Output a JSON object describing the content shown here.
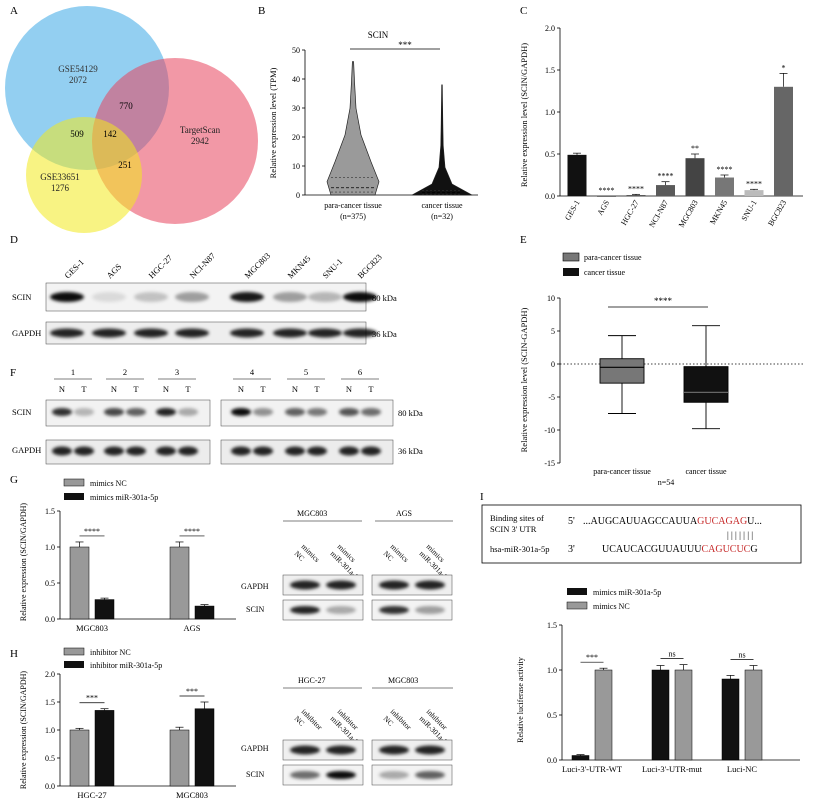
{
  "panels": {
    "A": {
      "letter": "A",
      "sets": [
        "GSE54129",
        "TargetScan",
        "GSE33651"
      ],
      "set_counts": [
        "2072",
        "2942",
        "1276"
      ],
      "overlaps": {
        "ab": "770",
        "ac": "509",
        "abc": "142",
        "bc": "251"
      },
      "colors": [
        "#3aa7e6",
        "#e8435d",
        "#f2ea1e"
      ]
    },
    "B": {
      "letter": "B",
      "chart_data": {
        "type": "violin",
        "title": "SCIN",
        "ylabel": "Relative expression level (TPM)",
        "ylim": [
          0,
          50
        ],
        "yticks": [
          0,
          10,
          20,
          30,
          40,
          50
        ],
        "categories": [
          "para-cancer tissue",
          "cancer tissue"
        ],
        "ns": [
          "(n=375)",
          "(n=32)"
        ],
        "max": [
          46,
          38
        ],
        "median": [
          2.5,
          0.8
        ],
        "q1": [
          1,
          0.3
        ],
        "q3": [
          6,
          1.5
        ],
        "significance": "***"
      }
    },
    "C": {
      "letter": "C",
      "chart_data": {
        "type": "bar",
        "ylabel": "Relative expression level (SCIN/GAPDH)",
        "ylim": [
          0,
          2.0
        ],
        "yticks": [
          0.0,
          0.5,
          1.0,
          1.5,
          2.0
        ],
        "categories": [
          "GES-1",
          "AGS",
          "HGC-27",
          "NCI-N87",
          "MGC803",
          "MKN45",
          "SNU-1",
          "BGC823"
        ],
        "values": [
          0.49,
          0.0,
          0.01,
          0.13,
          0.45,
          0.22,
          0.07,
          1.3
        ],
        "errors": [
          0.02,
          0.0,
          0.01,
          0.04,
          0.05,
          0.03,
          0.01,
          0.16
        ],
        "colors": [
          "#111111",
          "#111111",
          "#3a3a3a",
          "#5a5a5a",
          "#444444",
          "#777777",
          "#bbbbbb",
          "#666666"
        ],
        "significance": [
          "",
          "****",
          "****",
          "****",
          "**",
          "****",
          "****",
          "*"
        ]
      }
    },
    "D": {
      "letter": "D",
      "lanes": [
        "GES-1",
        "AGS",
        "HGC-27",
        "NCI-N87",
        "MGC803",
        "MKN45",
        "SNU-1",
        "BGC823"
      ],
      "rows": [
        "SCIN",
        "GAPDH"
      ],
      "sizes": [
        "80 kDa",
        "36 kDa"
      ],
      "scin_intensity": [
        0.95,
        0.1,
        0.2,
        0.35,
        0.9,
        0.35,
        0.25,
        0.95
      ]
    },
    "E": {
      "letter": "E",
      "chart_data": {
        "type": "box",
        "legend": [
          "para-cancer tissue",
          "cancer tissue"
        ],
        "legend_colors": [
          "#777777",
          "#111111"
        ],
        "ylabel": "Relative expression level (SCIN-GAPDH)",
        "ylim": [
          -15,
          10
        ],
        "yticks": [
          -15,
          -10,
          -5,
          0,
          5,
          10
        ],
        "categories": [
          "para-cancer tissue",
          "cancer tissue"
        ],
        "min": [
          -7.5,
          -9.8
        ],
        "q1": [
          -2.9,
          -5.8
        ],
        "median": [
          -0.5,
          -4.3
        ],
        "q3": [
          0.8,
          -0.4
        ],
        "max": [
          4.3,
          5.8
        ],
        "n_label": "n=54",
        "significance": "****"
      }
    },
    "F": {
      "letter": "F",
      "pairs": [
        "1",
        "2",
        "3",
        "4",
        "5",
        "6"
      ],
      "lane_labels": [
        "N",
        "T"
      ],
      "rows": [
        "SCIN",
        "GAPDH"
      ],
      "sizes": [
        "80 kDa",
        "36 kDa"
      ]
    },
    "G": {
      "letter": "G",
      "chart_data": {
        "type": "bar",
        "legend": [
          "mimics NC",
          "mimics miR-301a-5p"
        ],
        "legend_colors": [
          "#999999",
          "#111111"
        ],
        "ylabel": "Relative expression (SCIN/GAPDH)",
        "ylim": [
          0,
          1.5
        ],
        "yticks": [
          0.0,
          0.5,
          1.0,
          1.5
        ],
        "categories": [
          "MGC803",
          "AGS"
        ],
        "series": [
          {
            "name": "mimics NC",
            "values": [
              1.0,
              1.0
            ],
            "errors": [
              0.07,
              0.07
            ]
          },
          {
            "name": "mimics miR-301a-5p",
            "values": [
              0.27,
              0.18
            ],
            "errors": [
              0.02,
              0.02
            ]
          }
        ],
        "significance": [
          "****",
          "****"
        ]
      },
      "blot": {
        "groups": [
          "MGC803",
          "AGS"
        ],
        "lanes": [
          "mimics NC",
          "mimics miR-301a-5p"
        ],
        "rows": [
          "GAPDH",
          "SCIN"
        ]
      }
    },
    "H": {
      "letter": "H",
      "chart_data": {
        "type": "bar",
        "legend": [
          "inhibitor NC",
          "inhibitor miR-301a-5p"
        ],
        "legend_colors": [
          "#999999",
          "#111111"
        ],
        "ylabel": "Relative expression (SCIN/GAPDH)",
        "ylim": [
          0,
          2.0
        ],
        "yticks": [
          0.0,
          0.5,
          1.0,
          1.5,
          2.0
        ],
        "categories": [
          "HGC-27",
          "MGC803"
        ],
        "series": [
          {
            "name": "inhibitor NC",
            "values": [
              1.0,
              1.0
            ],
            "errors": [
              0.03,
              0.05
            ]
          },
          {
            "name": "inhibitor miR-301a-5p",
            "values": [
              1.35,
              1.38
            ],
            "errors": [
              0.03,
              0.12
            ]
          }
        ],
        "significance": [
          "***",
          "***"
        ]
      },
      "blot": {
        "groups": [
          "HGC-27",
          "MGC803"
        ],
        "lanes": [
          "inhibitor NC",
          "inhibitor miR-301a-5p"
        ],
        "rows": [
          "GAPDH",
          "SCIN"
        ]
      }
    },
    "I": {
      "letter": "I",
      "binding": {
        "label1": "Binding sites of",
        "label2": "SCIN 3' UTR",
        "label3": "hsa-miR-301a-5p",
        "p5": "5'",
        "p3": "3'",
        "seq1_black": "...AUGCAUUAGCCAUUA",
        "seq1_red": "GUCAGAG",
        "seq1_tail": "U...",
        "pairs": "| | | | | | |",
        "seq2_black": "UCAUCACGUUAUUU",
        "seq2_red": "CAGUCUC",
        "seq2_tail": "G"
      },
      "chart_data": {
        "type": "bar",
        "legend": [
          "mimics miR-301a-5p",
          "mimics NC"
        ],
        "legend_colors": [
          "#111111",
          "#999999"
        ],
        "ylabel": "Relative luciferase activity",
        "ylim": [
          0,
          1.5
        ],
        "yticks": [
          0.0,
          0.5,
          1.0,
          1.5
        ],
        "categories": [
          "Luci-3'-UTR-WT",
          "Luci-3'-UTR-mut",
          "Luci-NC"
        ],
        "series": [
          {
            "name": "mimics miR-301a-5p",
            "values": [
              0.05,
              1.0,
              0.9
            ],
            "errors": [
              0.01,
              0.05,
              0.04
            ]
          },
          {
            "name": "mimics NC",
            "values": [
              1.0,
              1.0,
              1.0
            ],
            "errors": [
              0.02,
              0.06,
              0.05
            ]
          }
        ],
        "significance": [
          "***",
          "ns",
          "ns"
        ]
      }
    }
  }
}
